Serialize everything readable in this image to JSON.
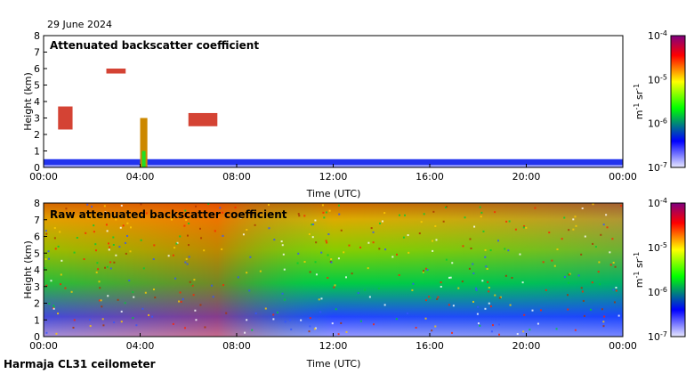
{
  "date": "29 June 2024",
  "footer": "Harmaja CL31 ceilometer",
  "colorbar": {
    "ticks": [
      "10^-4",
      "10^-5",
      "10^-6",
      "10^-7"
    ],
    "exponents": [
      "-4",
      "-5",
      "-6",
      "-7"
    ],
    "unit": "m^-1 sr^-1",
    "colors": [
      "#800080",
      "#ff0000",
      "#ffff00",
      "#00ff00",
      "#0000ff",
      "#e8e8ff"
    ]
  },
  "chart_data": [
    {
      "type": "heatmap",
      "title": "Attenuated backscatter coefficient",
      "xlabel": "Time (UTC)",
      "ylabel": "Height (km)",
      "xticks": [
        "00:00",
        "04:00",
        "08:00",
        "12:00",
        "16:00",
        "20:00",
        "00:00"
      ],
      "yticks": [
        0,
        1,
        2,
        3,
        4,
        5,
        6,
        7,
        8
      ],
      "ylim": [
        0,
        8
      ],
      "xlim_hours": [
        0,
        24
      ],
      "colorscale": "log",
      "clim": [
        1e-07,
        0.0001
      ],
      "features": [
        {
          "name": "boundary layer",
          "t_start": 0,
          "t_end": 24,
          "h_top": 0.5
        },
        {
          "name": "cloud layer",
          "t_start": 0.6,
          "t_end": 1.2,
          "h_bottom": 2.3,
          "h_top": 3.7
        },
        {
          "name": "cloud layer",
          "t_start": 2.6,
          "t_end": 3.4,
          "h_bottom": 5.7,
          "h_top": 6.0
        },
        {
          "name": "precipitation",
          "t_start": 4.0,
          "t_end": 4.3,
          "h_bottom": 0,
          "h_top": 3.0
        },
        {
          "name": "cloud layer",
          "t_start": 6.0,
          "t_end": 7.2,
          "h_bottom": 2.5,
          "h_top": 3.3
        }
      ]
    },
    {
      "type": "heatmap",
      "title": "Raw attenuated backscatter coefficient",
      "xlabel": "Time (UTC)",
      "ylabel": "Height (km)",
      "xticks": [
        "00:00",
        "04:00",
        "08:00",
        "12:00",
        "16:00",
        "20:00",
        "00:00"
      ],
      "yticks": [
        0,
        1,
        2,
        3,
        4,
        5,
        6,
        7,
        8
      ],
      "ylim": [
        0,
        8
      ],
      "xlim_hours": [
        0,
        24
      ],
      "colorscale": "log",
      "clim": [
        1e-07,
        0.0001
      ]
    }
  ]
}
